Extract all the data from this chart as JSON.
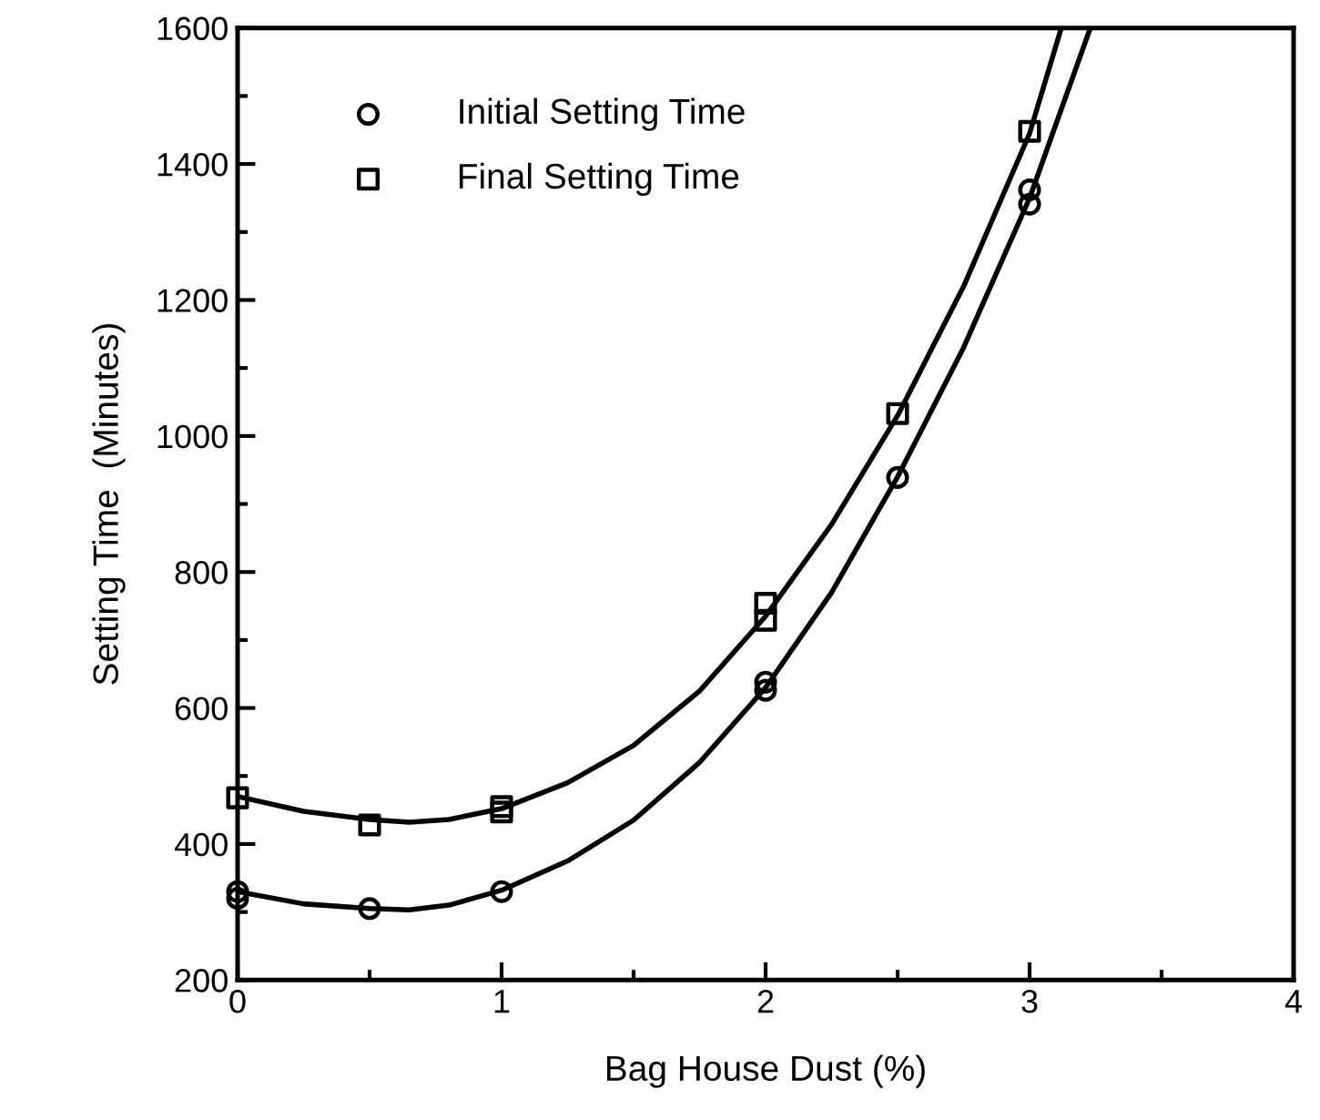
{
  "chart_data": {
    "type": "scatter",
    "xlabel": "Bag House Dust (%)",
    "ylabel": "Setting Time  (Minutes)",
    "xlim": [
      0,
      4
    ],
    "xticks": [
      0,
      1,
      2,
      3,
      4
    ],
    "ylim": [
      200,
      1600
    ],
    "yticks": [
      200,
      400,
      600,
      800,
      1000,
      1200,
      1400,
      1600
    ],
    "grid": false,
    "legend": "top left",
    "series": [
      {
        "name": "Initial Setting Time",
        "marker": "circle",
        "color": "#000000",
        "x": [
          0,
          0,
          0.5,
          1,
          2,
          2,
          2.5,
          3,
          3
        ],
        "values": [
          330,
          320,
          305,
          330,
          638,
          626,
          939,
          1362,
          1341
        ]
      },
      {
        "name": "Final Setting Time",
        "marker": "square",
        "color": "#000000",
        "x": [
          0,
          0.5,
          1,
          1,
          2,
          2,
          2.5,
          3
        ],
        "values": [
          468,
          428,
          455,
          447,
          754,
          729,
          1033,
          1448
        ]
      },
      {
        "type": "line",
        "marker": "none",
        "color": "#000000",
        "x": [
          0,
          0.25,
          0.5,
          0.65,
          0.8,
          1,
          1.25,
          1.5,
          1.75,
          2,
          2.25,
          2.5,
          2.75,
          3,
          3.23
        ],
        "values": [
          330,
          312,
          305,
          303,
          310,
          332,
          375,
          435,
          520,
          630,
          770,
          940,
          1130,
          1350,
          1600
        ]
      },
      {
        "type": "line",
        "marker": "none",
        "color": "#000000",
        "x": [
          0,
          0.25,
          0.5,
          0.65,
          0.8,
          1,
          1.25,
          1.5,
          1.75,
          2,
          2.25,
          2.5,
          2.75,
          3,
          3.12
        ],
        "values": [
          470,
          448,
          436,
          432,
          436,
          452,
          490,
          545,
          625,
          735,
          870,
          1030,
          1220,
          1445,
          1600
        ]
      }
    ]
  }
}
